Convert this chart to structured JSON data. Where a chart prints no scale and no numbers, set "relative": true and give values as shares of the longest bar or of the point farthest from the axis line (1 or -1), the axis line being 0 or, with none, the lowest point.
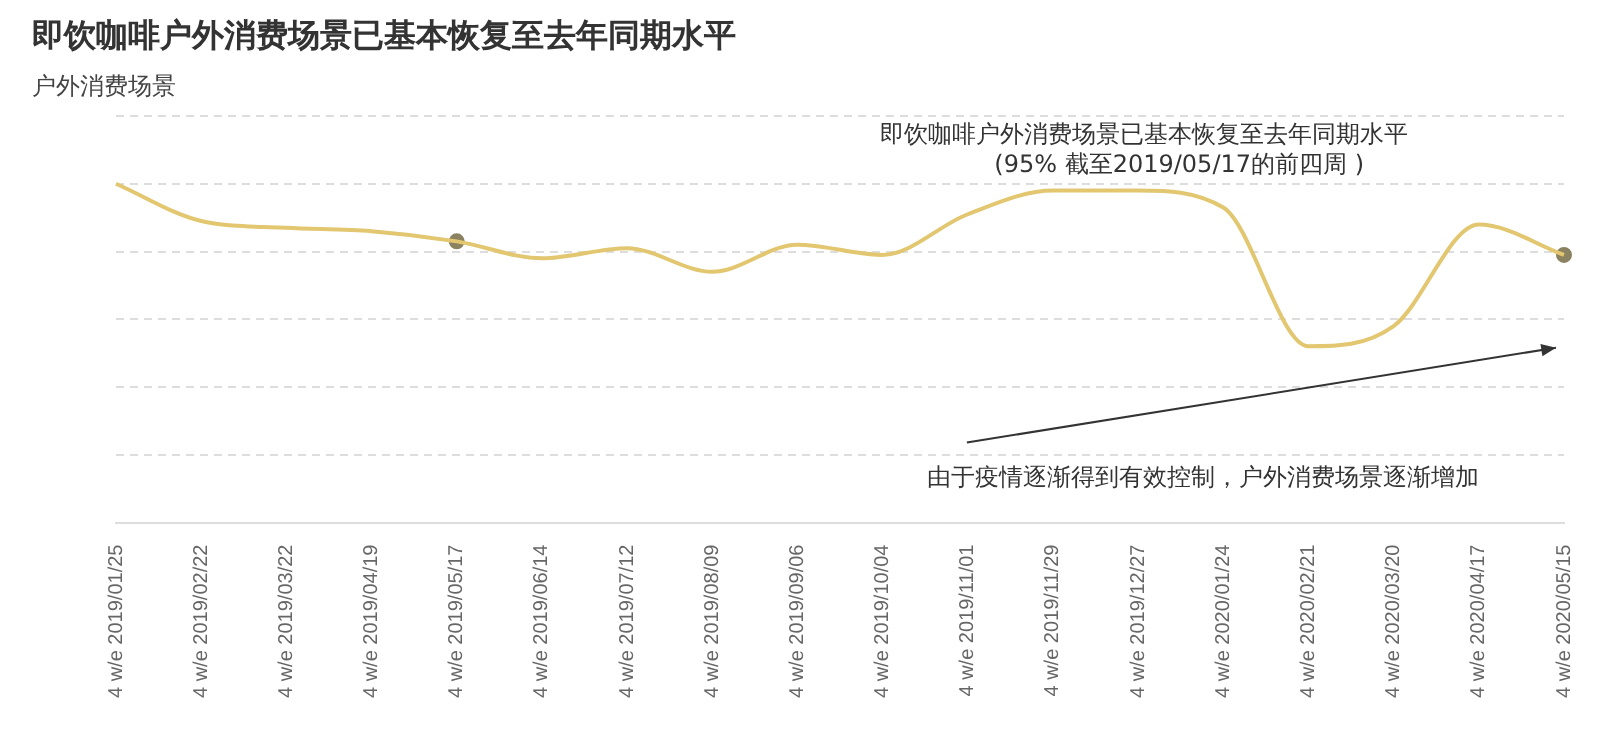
{
  "chart_data": {
    "type": "line",
    "title": "即饮咖啡户外消费场景已基本恢复至去年同期水平",
    "subtitle": "户外消费场景",
    "categories": [
      "4 w/e 2019/01/25",
      "4 w/e 2019/02/22",
      "4 w/e 2019/03/22",
      "4 w/e 2019/04/19",
      "4 w/e 2019/05/17",
      "4 w/e 2019/06/14",
      "4 w/e 2019/07/12",
      "4 w/e 2019/08/09",
      "4 w/e 2019/09/06",
      "4 w/e 2019/10/04",
      "4 w/e 2019/11/01",
      "4 w/e 2019/11/29",
      "4 w/e 2019/12/27",
      "4 w/e 2020/01/24",
      "4 w/e 2020/02/21",
      "4 w/e 2020/03/20",
      "4 w/e 2020/04/17",
      "4 w/e 2020/05/15"
    ],
    "series": [
      {
        "color": "#e2c770",
        "marker": "none",
        "values": [
          1,
          0.89,
          0.87,
          0.86,
          0.83,
          0.78,
          0.81,
          0.74,
          0.82,
          0.79,
          0.91,
          0.98,
          0.98,
          0.93,
          0.52,
          0.58,
          0.88,
          0.79
        ]
      },
      {
        "type": "scatter",
        "color": "#8a8260",
        "marker": "circle",
        "x": [
          "4 w/e 2019/05/17",
          "4 w/e 2020/05/15"
        ],
        "values": [
          0.83,
          0.79
        ]
      }
    ],
    "relative": true,
    "grid": "y",
    "line_style": "solid",
    "tick_labels": "x",
    "annotations": [
      "即饮咖啡户外消费场景已基本恢复至去年同期水平\n(95% 截至2019/05/17的前四周 )",
      "由于疫情逐渐得到有效控制，户外消费场景逐渐增加"
    ]
  }
}
